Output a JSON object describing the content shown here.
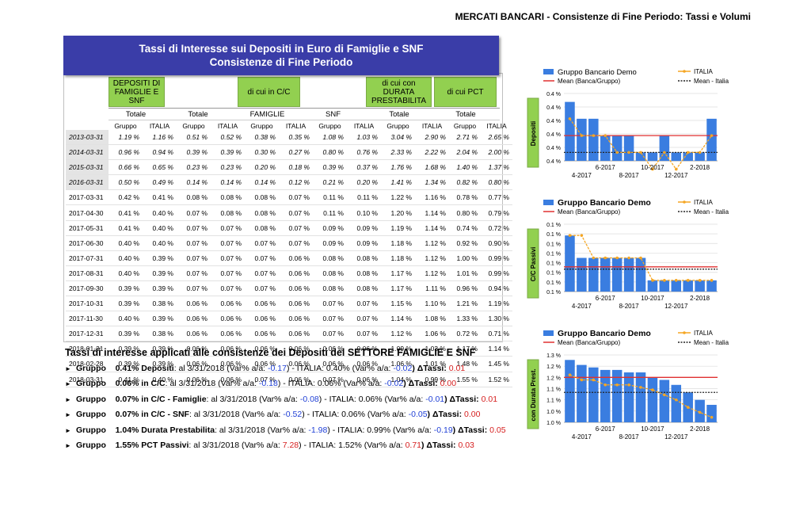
{
  "header": {
    "top_title": "MERCATI BANCARI - Consistenze di Fine Periodo: Tassi e Volumi"
  },
  "banner": {
    "line1": "Tassi di Interesse sui Depositi in Euro di Famiglie e SNF",
    "line2": "Consistenze di Fine Periodo"
  },
  "table": {
    "groups": [
      "DEPOSITI DI FAMIGLIE E SNF",
      "di cui in C/C",
      "di cui con DURATA PRESTABILITA",
      "di cui PCT"
    ],
    "subgroups": [
      "Totale",
      "Totale",
      "FAMIGLIE",
      "SNF",
      "Totale",
      "Totale"
    ],
    "col_labels": [
      "Gruppo",
      "ITALIA"
    ],
    "rows": [
      {
        "date": "2013-03-31",
        "italic": true,
        "v": [
          "1.19 %",
          "1.16 %",
          "0.51 %",
          "0.52 %",
          "0.38 %",
          "0.35 %",
          "1.08 %",
          "1.03 %",
          "3.04 %",
          "2.90 %",
          "2.71 %",
          "2.65 %"
        ]
      },
      {
        "date": "2014-03-31",
        "italic": true,
        "v": [
          "0.96 %",
          "0.94 %",
          "0.39 %",
          "0.39 %",
          "0.30 %",
          "0.27 %",
          "0.80 %",
          "0.76 %",
          "2.33 %",
          "2.22 %",
          "2.04 %",
          "2.00 %"
        ]
      },
      {
        "date": "2015-03-31",
        "italic": true,
        "v": [
          "0.66 %",
          "0.65 %",
          "0.23 %",
          "0.23 %",
          "0.20 %",
          "0.18 %",
          "0.39 %",
          "0.37 %",
          "1.76 %",
          "1.68 %",
          "1.40 %",
          "1.37 %"
        ]
      },
      {
        "date": "2016-03-31",
        "italic": true,
        "v": [
          "0.50 %",
          "0.49 %",
          "0.14 %",
          "0.14 %",
          "0.14 %",
          "0.12 %",
          "0.21 %",
          "0.20 %",
          "1.41 %",
          "1.34 %",
          "0.82 %",
          "0.80 %"
        ]
      },
      {
        "date": "2017-03-31",
        "italic": false,
        "v": [
          "0.42 %",
          "0.41 %",
          "0.08 %",
          "0.08 %",
          "0.08 %",
          "0.07 %",
          "0.11 %",
          "0.11 %",
          "1.22 %",
          "1.16 %",
          "0.78 %",
          "0.77 %"
        ]
      },
      {
        "date": "2017-04-30",
        "italic": false,
        "v": [
          "0.41 %",
          "0.40 %",
          "0.07 %",
          "0.08 %",
          "0.08 %",
          "0.07 %",
          "0.11 %",
          "0.10 %",
          "1.20 %",
          "1.14 %",
          "0.80 %",
          "0.79 %"
        ]
      },
      {
        "date": "2017-05-31",
        "italic": false,
        "v": [
          "0.41 %",
          "0.40 %",
          "0.07 %",
          "0.07 %",
          "0.08 %",
          "0.07 %",
          "0.09 %",
          "0.09 %",
          "1.19 %",
          "1.14 %",
          "0.74 %",
          "0.72 %"
        ]
      },
      {
        "date": "2017-06-30",
        "italic": false,
        "v": [
          "0.40 %",
          "0.40 %",
          "0.07 %",
          "0.07 %",
          "0.07 %",
          "0.07 %",
          "0.09 %",
          "0.09 %",
          "1.18 %",
          "1.12 %",
          "0.92 %",
          "0.90 %"
        ]
      },
      {
        "date": "2017-07-31",
        "italic": false,
        "v": [
          "0.40 %",
          "0.39 %",
          "0.07 %",
          "0.07 %",
          "0.07 %",
          "0.06 %",
          "0.08 %",
          "0.08 %",
          "1.18 %",
          "1.12 %",
          "1.00 %",
          "0.99 %"
        ]
      },
      {
        "date": "2017-08-31",
        "italic": false,
        "v": [
          "0.40 %",
          "0.39 %",
          "0.07 %",
          "0.07 %",
          "0.07 %",
          "0.06 %",
          "0.08 %",
          "0.08 %",
          "1.17 %",
          "1.12 %",
          "1.01 %",
          "0.99 %"
        ]
      },
      {
        "date": "2017-09-30",
        "italic": false,
        "v": [
          "0.39 %",
          "0.39 %",
          "0.07 %",
          "0.07 %",
          "0.07 %",
          "0.06 %",
          "0.08 %",
          "0.08 %",
          "1.17 %",
          "1.11 %",
          "0.96 %",
          "0.94 %"
        ]
      },
      {
        "date": "2017-10-31",
        "italic": false,
        "v": [
          "0.39 %",
          "0.38 %",
          "0.06 %",
          "0.06 %",
          "0.06 %",
          "0.06 %",
          "0.07 %",
          "0.07 %",
          "1.15 %",
          "1.10 %",
          "1.21 %",
          "1.19 %"
        ]
      },
      {
        "date": "2017-11-30",
        "italic": false,
        "v": [
          "0.40 %",
          "0.39 %",
          "0.06 %",
          "0.06 %",
          "0.06 %",
          "0.06 %",
          "0.07 %",
          "0.07 %",
          "1.14 %",
          "1.08 %",
          "1.33 %",
          "1.30 %"
        ]
      },
      {
        "date": "2017-12-31",
        "italic": false,
        "v": [
          "0.39 %",
          "0.38 %",
          "0.06 %",
          "0.06 %",
          "0.06 %",
          "0.06 %",
          "0.07 %",
          "0.07 %",
          "1.12 %",
          "1.06 %",
          "0.72 %",
          "0.71 %"
        ]
      },
      {
        "date": "2018-01-31",
        "italic": false,
        "v": [
          "0.39 %",
          "0.39 %",
          "0.06 %",
          "0.06 %",
          "0.06 %",
          "0.06 %",
          "0.06 %",
          "0.06 %",
          "1.09 %",
          "1.03 %",
          "1.17 %",
          "1.14 %"
        ]
      },
      {
        "date": "2018-02-28",
        "italic": false,
        "v": [
          "0.39 %",
          "0.39 %",
          "0.06 %",
          "0.06 %",
          "0.06 %",
          "0.06 %",
          "0.06 %",
          "0.06 %",
          "1.06 %",
          "1.01 %",
          "1.48 %",
          "1.45 %"
        ]
      },
      {
        "date": "2018-03-31",
        "italic": false,
        "v": [
          "0.41 %",
          "0.40 %",
          "0.06 %",
          "0.06 %",
          "0.07 %",
          "0.06 %",
          "0.07 %",
          "0.06 %",
          "1.04 %",
          "0.99 %",
          "1.55 %",
          "1.52 %"
        ]
      }
    ]
  },
  "summary": {
    "title": "Tassi di interesse applicati alle consistenze dei  Depositi  del SETTORE FAMIGLIE E SNF",
    "rows": [
      {
        "label": "Gruppo",
        "value": "0.41% Depositi",
        "date": ": al 3/31/2018 (Var% a/a: ",
        "var": "-0.17",
        "it": ") - ITALIA: 0.40% (Var% a/a: ",
        "itvar": "-0.02",
        "dt_label": ") ΔTassi: ",
        "dt": "0.01"
      },
      {
        "label": "Gruppo",
        "value": "0.06% in C/C",
        "date": ": al 3/31/2018 (Var% a/a: ",
        "var": "-0.18",
        "it": ") - ITALIA: 0.06% (Var% a/a: ",
        "itvar": "-0.02",
        "dt_label": ") ΔTassi: ",
        "dt": "0.00"
      },
      {
        "label": "Gruppo",
        "value": "0.07% in C/C - Famiglie",
        "date": ": al 3/31/2018 (Var% a/a: ",
        "var": "-0.08",
        "it": ") - ITALIA: 0.06% (Var% a/a: ",
        "itvar": "-0.01",
        "dt_label": ") ΔTassi: ",
        "dt": "0.01"
      },
      {
        "label": "Gruppo",
        "value": "0.07% in C/C - SNF",
        "date": ": al 3/31/2018 (Var% a/a: ",
        "var": "-0.52",
        "it": ") - ITALIA: 0.06% (Var% a/a: ",
        "itvar": "-0.05",
        "dt_label": ") ΔTassi: ",
        "dt": "0.00"
      },
      {
        "label": "Gruppo",
        "value": "1.04% Durata Prestabilita",
        "date": ": al 3/31/2018 (Var% a/a: ",
        "var": "-1.98",
        "it": ") - ITALIA: 0.99% (Var% a/a: ",
        "itvar": "-0.19",
        "dt_label": ") ΔTassi: ",
        "dt": "0.05"
      },
      {
        "label": "Gruppo",
        "value": "1.55% PCT Passivi",
        "date": ": al 3/31/2018 (Var% a/a: ",
        "var": "7.28",
        "it": ") - ITALIA: 1.52% (Var% a/a: ",
        "itvar": "0.71",
        "dt_label": ") ΔTassi: ",
        "dt": "0.03"
      }
    ]
  },
  "colors": {
    "bar": "#3a7de0",
    "italia": "#f5a623",
    "mean_bank": "#e03030",
    "mean_italia": "#222222",
    "green": "#92d050",
    "banner": "#3a3da8"
  },
  "chart_data": [
    {
      "type": "bar",
      "side_label": "Depositi",
      "legend": [
        "Gruppo Bancario Demo",
        "Mean (Banca/Gruppo)",
        "ITALIA",
        "Mean - Italia"
      ],
      "legend_bold": false,
      "x": [
        "2017-03",
        "2017-04",
        "2017-05",
        "2017-06",
        "2017-07",
        "2017-08",
        "2017-09",
        "2017-10",
        "2017-11",
        "2017-12",
        "2018-01",
        "2018-02",
        "2018-03"
      ],
      "x_ticks_top": [
        "6-2017",
        "10-2017",
        "2-2018"
      ],
      "x_ticks_bottom": [
        "4-2017",
        "8-2017",
        "12-2017"
      ],
      "y_ticks": [
        "0.4 %",
        "0.4 %",
        "0.4 %",
        "0.4 %",
        "0.4 %",
        "0.4 %"
      ],
      "bank": [
        0.42,
        0.41,
        0.41,
        0.4,
        0.4,
        0.4,
        0.39,
        0.39,
        0.4,
        0.39,
        0.39,
        0.39,
        0.41
      ],
      "italia": [
        0.41,
        0.4,
        0.4,
        0.4,
        0.39,
        0.39,
        0.39,
        0.38,
        0.39,
        0.38,
        0.39,
        0.39,
        0.4
      ],
      "mean_bank": 0.4,
      "mean_italia": 0.39,
      "ylim": [
        0.385,
        0.425
      ]
    },
    {
      "type": "bar",
      "side_label": "C/C Passivi",
      "legend": [
        "Gruppo Bancario Demo",
        "Mean (Banca/Gruppo)",
        "ITALIA",
        "Mean - Italia"
      ],
      "legend_bold": true,
      "x": [
        "2017-03",
        "2017-04",
        "2017-05",
        "2017-06",
        "2017-07",
        "2017-08",
        "2017-09",
        "2017-10",
        "2017-11",
        "2017-12",
        "2018-01",
        "2018-02",
        "2018-03"
      ],
      "x_ticks_top": [
        "6-2017",
        "10-2017",
        "2-2018"
      ],
      "x_ticks_bottom": [
        "4-2017",
        "8-2017",
        "12-2017"
      ],
      "y_ticks": [
        "0.1 %",
        "0.1 %",
        "0.1 %",
        "0.1 %",
        "0.1 %",
        "0.1 %",
        "0.1 %",
        "0.1 %"
      ],
      "bank": [
        0.08,
        0.07,
        0.07,
        0.07,
        0.07,
        0.07,
        0.07,
        0.06,
        0.06,
        0.06,
        0.06,
        0.06,
        0.06
      ],
      "italia": [
        0.08,
        0.08,
        0.07,
        0.07,
        0.07,
        0.07,
        0.07,
        0.06,
        0.06,
        0.06,
        0.06,
        0.06,
        0.06
      ],
      "mean_bank": 0.066,
      "mean_italia": 0.065,
      "ylim": [
        0.055,
        0.085
      ]
    },
    {
      "type": "bar",
      "side_label": "con Durata Prest.",
      "legend": [
        "Gruppo Bancario Demo",
        "Mean (Banca/Gruppo)",
        "ITALIA",
        "Mean - Italia"
      ],
      "legend_bold": true,
      "x": [
        "2017-03",
        "2017-04",
        "2017-05",
        "2017-06",
        "2017-07",
        "2017-08",
        "2017-09",
        "2017-10",
        "2017-11",
        "2017-12",
        "2018-01",
        "2018-02",
        "2018-03"
      ],
      "x_ticks_top": [
        "6-2017",
        "10-2017",
        "2-2018"
      ],
      "x_ticks_bottom": [
        "4-2017",
        "8-2017",
        "12-2017"
      ],
      "y_ticks": [
        "1.0 %",
        "1.0 %",
        "1.1 %",
        "1.1 %",
        "1.2 %",
        "1.2 %",
        "1.3 %"
      ],
      "bank": [
        1.22,
        1.2,
        1.19,
        1.18,
        1.18,
        1.17,
        1.17,
        1.15,
        1.14,
        1.12,
        1.09,
        1.06,
        1.04
      ],
      "italia": [
        1.16,
        1.14,
        1.14,
        1.12,
        1.12,
        1.12,
        1.11,
        1.1,
        1.08,
        1.06,
        1.03,
        1.01,
        0.99
      ],
      "mean_bank": 1.15,
      "mean_italia": 1.09,
      "ylim": [
        0.97,
        1.24
      ]
    }
  ]
}
